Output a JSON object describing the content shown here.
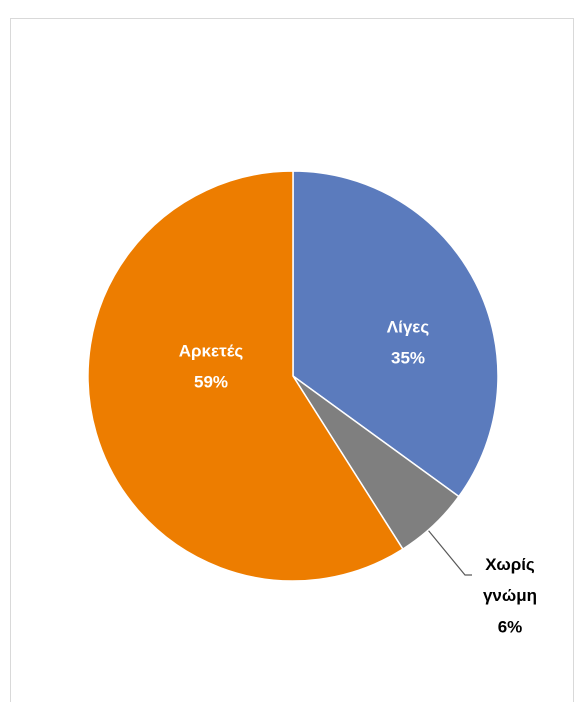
{
  "chart_data": {
    "type": "pie",
    "categories": [
      "Λίγες",
      "Χωρίς γνώμη",
      "Αρκετές"
    ],
    "values": [
      35,
      6,
      59
    ],
    "value_labels": [
      "35%",
      "6%",
      "59%"
    ],
    "colors": [
      "#5b7bbd",
      "#7f7f7f",
      "#ed7d00"
    ]
  }
}
